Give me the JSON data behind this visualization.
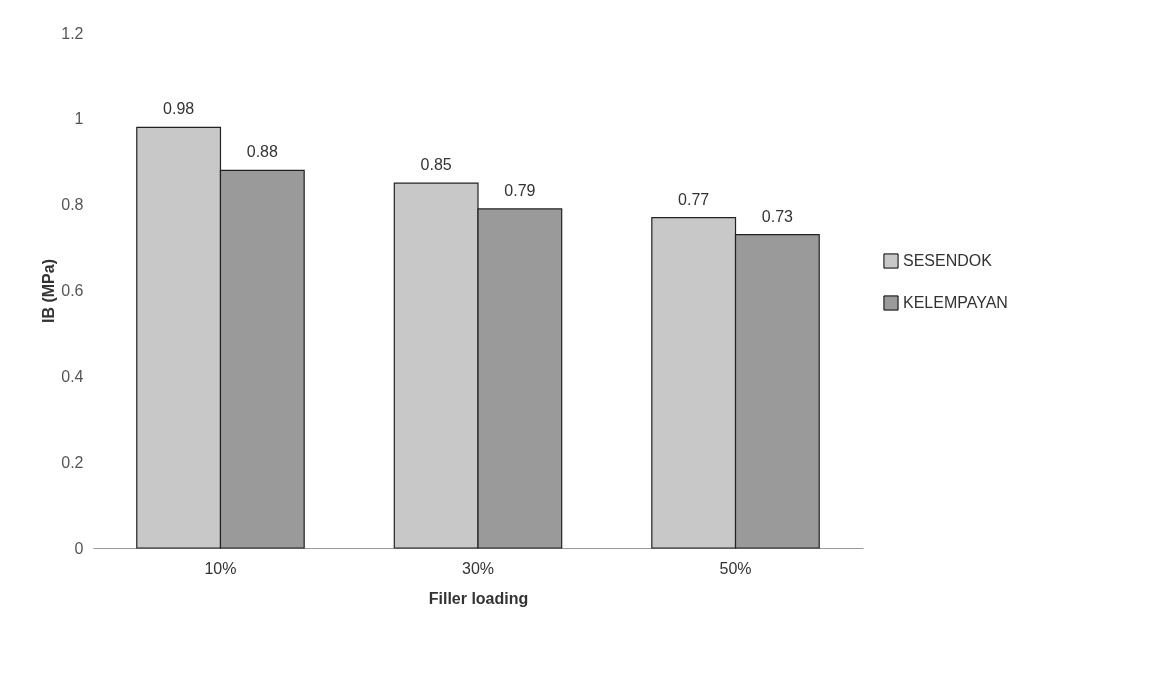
{
  "chart_data": {
    "type": "bar",
    "xlabel": "Filler loading",
    "ylabel": "IB (MPa)",
    "categories": [
      "10%",
      "30%",
      "50%"
    ],
    "series": [
      {
        "name": "SESENDOK",
        "color": "#c8c8c8",
        "values": [
          0.98,
          0.85,
          0.77
        ]
      },
      {
        "name": "KELEMPAYAN",
        "color": "#9a9a9a",
        "values": [
          0.88,
          0.79,
          0.73
        ]
      }
    ],
    "ylim": [
      0,
      1.2
    ],
    "yticks": [
      0,
      0.2,
      0.4,
      0.6,
      0.8,
      1,
      1.2
    ],
    "grid": false,
    "legend": "right",
    "data_labels": true
  }
}
